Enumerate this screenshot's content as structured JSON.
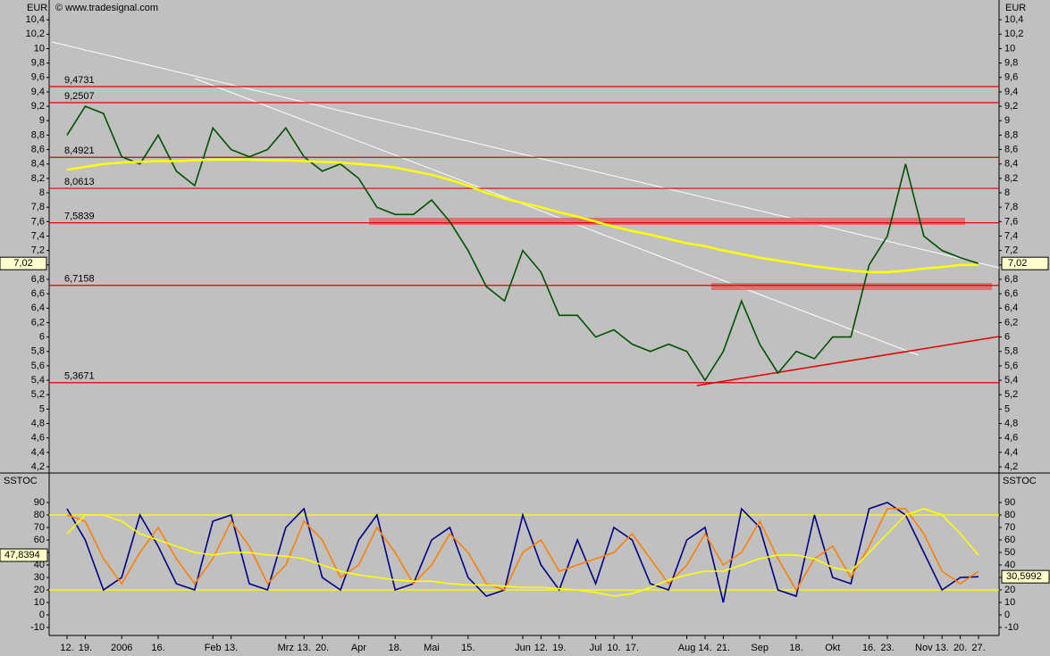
{
  "chart_data": [
    {
      "type": "line",
      "title": "EUR",
      "source": "© www.tradesignal.com",
      "categories": [
        "12.",
        "19.",
        null,
        "2006",
        null,
        "16.",
        null,
        null,
        "Feb",
        "13.",
        null,
        null,
        "Mrz",
        "13.",
        "20.",
        null,
        "Apr",
        null,
        "18.",
        null,
        "Mai",
        null,
        "15.",
        null,
        null,
        "Jun",
        "12.",
        "19.",
        null,
        "Jul",
        "10.",
        "17.",
        null,
        null,
        "Aug",
        "14.",
        "21.",
        null,
        "Sep",
        null,
        "18.",
        null,
        "Okt",
        null,
        "16.",
        "23.",
        null,
        "Nov",
        "13.",
        "20.",
        "27."
      ],
      "series": [
        {
          "color": "#005000",
          "values": [
            8.8,
            9.2,
            9.1,
            8.5,
            8.4,
            8.8,
            8.3,
            8.1,
            8.9,
            8.6,
            8.5,
            8.6,
            8.9,
            8.5,
            8.3,
            8.4,
            8.2,
            7.8,
            7.7,
            7.7,
            7.9,
            7.6,
            7.2,
            6.7,
            6.5,
            7.2,
            6.9,
            6.3,
            6.3,
            6.0,
            6.1,
            5.9,
            5.8,
            5.9,
            5.8,
            5.4,
            5.8,
            6.5,
            5.9,
            5.5,
            5.8,
            5.7,
            6.0,
            6.0,
            7.0,
            7.4,
            8.4,
            7.4,
            7.2,
            7.1,
            7.02
          ]
        },
        {
          "color": "#ffff00",
          "values": [
            8.32,
            8.36,
            8.4,
            8.42,
            8.43,
            8.44,
            8.44,
            8.45,
            8.46,
            8.46,
            8.46,
            8.45,
            8.45,
            8.44,
            8.43,
            8.42,
            8.4,
            8.38,
            8.35,
            8.3,
            8.25,
            8.18,
            8.1,
            8.0,
            7.92,
            7.86,
            7.8,
            7.73,
            7.67,
            7.6,
            7.53,
            7.47,
            7.42,
            7.36,
            7.3,
            7.26,
            7.2,
            7.15,
            7.1,
            7.06,
            7.02,
            6.98,
            6.95,
            6.92,
            6.9,
            6.9,
            6.92,
            6.95,
            6.97,
            7.0,
            7.0
          ]
        }
      ],
      "ylim": [
        4.2,
        10.6
      ],
      "yticks": [
        {
          "value": 4.2,
          "label": "4,2"
        },
        {
          "value": 4.4,
          "label": "4,4"
        },
        {
          "value": 4.6,
          "label": "4,6"
        },
        {
          "value": 4.8,
          "label": "4,8"
        },
        5,
        {
          "value": 5.2,
          "label": "5,2"
        },
        {
          "value": 5.4,
          "label": "5,4"
        },
        {
          "value": 5.6,
          "label": "5,6"
        },
        {
          "value": 5.8,
          "label": "5,8"
        },
        6,
        {
          "value": 6.2,
          "label": "6,2"
        },
        {
          "value": 6.4,
          "label": "6,4"
        },
        {
          "value": 6.6,
          "label": "6,6"
        },
        {
          "value": 6.8,
          "label": "6,8"
        },
        7,
        {
          "value": 7.2,
          "label": "7,2"
        },
        {
          "value": 7.4,
          "label": "7,4"
        },
        {
          "value": 7.6,
          "label": "7,6"
        },
        {
          "value": 7.8,
          "label": "7,8"
        },
        8,
        {
          "value": 8.2,
          "label": "8,2"
        },
        {
          "value": 8.4,
          "label": "8,4"
        },
        {
          "value": 8.6,
          "label": "8,6"
        },
        {
          "value": 8.8,
          "label": "8,8"
        },
        9,
        {
          "value": 9.2,
          "label": "9,2"
        },
        {
          "value": 9.4,
          "label": "9,4"
        },
        {
          "value": 9.6,
          "label": "9,6"
        },
        {
          "value": 9.8,
          "label": "9,8"
        },
        10,
        {
          "value": 10.2,
          "label": "10,2"
        },
        {
          "value": 10.4,
          "label": "10,4"
        }
      ],
      "levels": [
        {
          "value": 9.4731,
          "label": "9,4731"
        },
        {
          "value": 9.2507,
          "label": "9,2507"
        },
        {
          "value": 8.4921,
          "label": "8,4921"
        },
        {
          "value": 8.0613,
          "label": "8,0613"
        },
        {
          "value": 7.5839,
          "label": "7,5839"
        },
        {
          "value": 6.7158,
          "label": "6,7158"
        },
        {
          "value": 5.3671,
          "label": "5,3671"
        }
      ],
      "level_color": "#e00000",
      "current": {
        "value": 7.02,
        "label": "7,02"
      }
    },
    {
      "type": "line",
      "title": "SSTOC",
      "series": [
        {
          "color": "#000080",
          "values": [
            85,
            60,
            20,
            30,
            80,
            55,
            25,
            20,
            75,
            80,
            25,
            20,
            70,
            85,
            30,
            20,
            60,
            80,
            20,
            25,
            60,
            70,
            30,
            15,
            20,
            80,
            40,
            20,
            60,
            25,
            70,
            60,
            25,
            20,
            60,
            70,
            10,
            85,
            70,
            20,
            15,
            80,
            30,
            25,
            85,
            90,
            80,
            50,
            20,
            30,
            30.5992
          ]
        },
        {
          "color": "#ff8000",
          "values": [
            80,
            75,
            45,
            25,
            50,
            70,
            45,
            25,
            45,
            75,
            55,
            25,
            40,
            75,
            60,
            30,
            40,
            70,
            50,
            25,
            40,
            65,
            50,
            25,
            20,
            50,
            60,
            35,
            40,
            45,
            50,
            65,
            45,
            25,
            40,
            65,
            40,
            50,
            75,
            45,
            20,
            45,
            55,
            30,
            55,
            85,
            85,
            65,
            35,
            25,
            35
          ]
        },
        {
          "color": "#ffff00",
          "values": [
            65,
            80,
            80,
            75,
            65,
            60,
            55,
            50,
            48,
            50,
            50,
            48,
            47,
            45,
            40,
            35,
            32,
            30,
            28,
            27,
            27,
            25,
            24,
            24,
            23,
            22,
            22,
            21,
            20,
            18,
            15,
            17,
            22,
            28,
            32,
            35,
            35,
            40,
            45,
            48,
            48,
            45,
            38,
            35,
            50,
            65,
            80,
            85,
            80,
            65,
            47.8394
          ]
        }
      ],
      "ylim": [
        -15,
        100
      ],
      "yticks": [
        -10,
        0,
        10,
        20,
        30,
        40,
        50,
        60,
        70,
        80,
        90
      ],
      "levels": [
        80,
        20
      ],
      "level_color": "#ffff00",
      "markers": [
        {
          "value": 47.8394,
          "label": "47,8394",
          "side": "left"
        },
        {
          "value": 30.5992,
          "label": "30,5992",
          "side": "right"
        }
      ]
    }
  ]
}
